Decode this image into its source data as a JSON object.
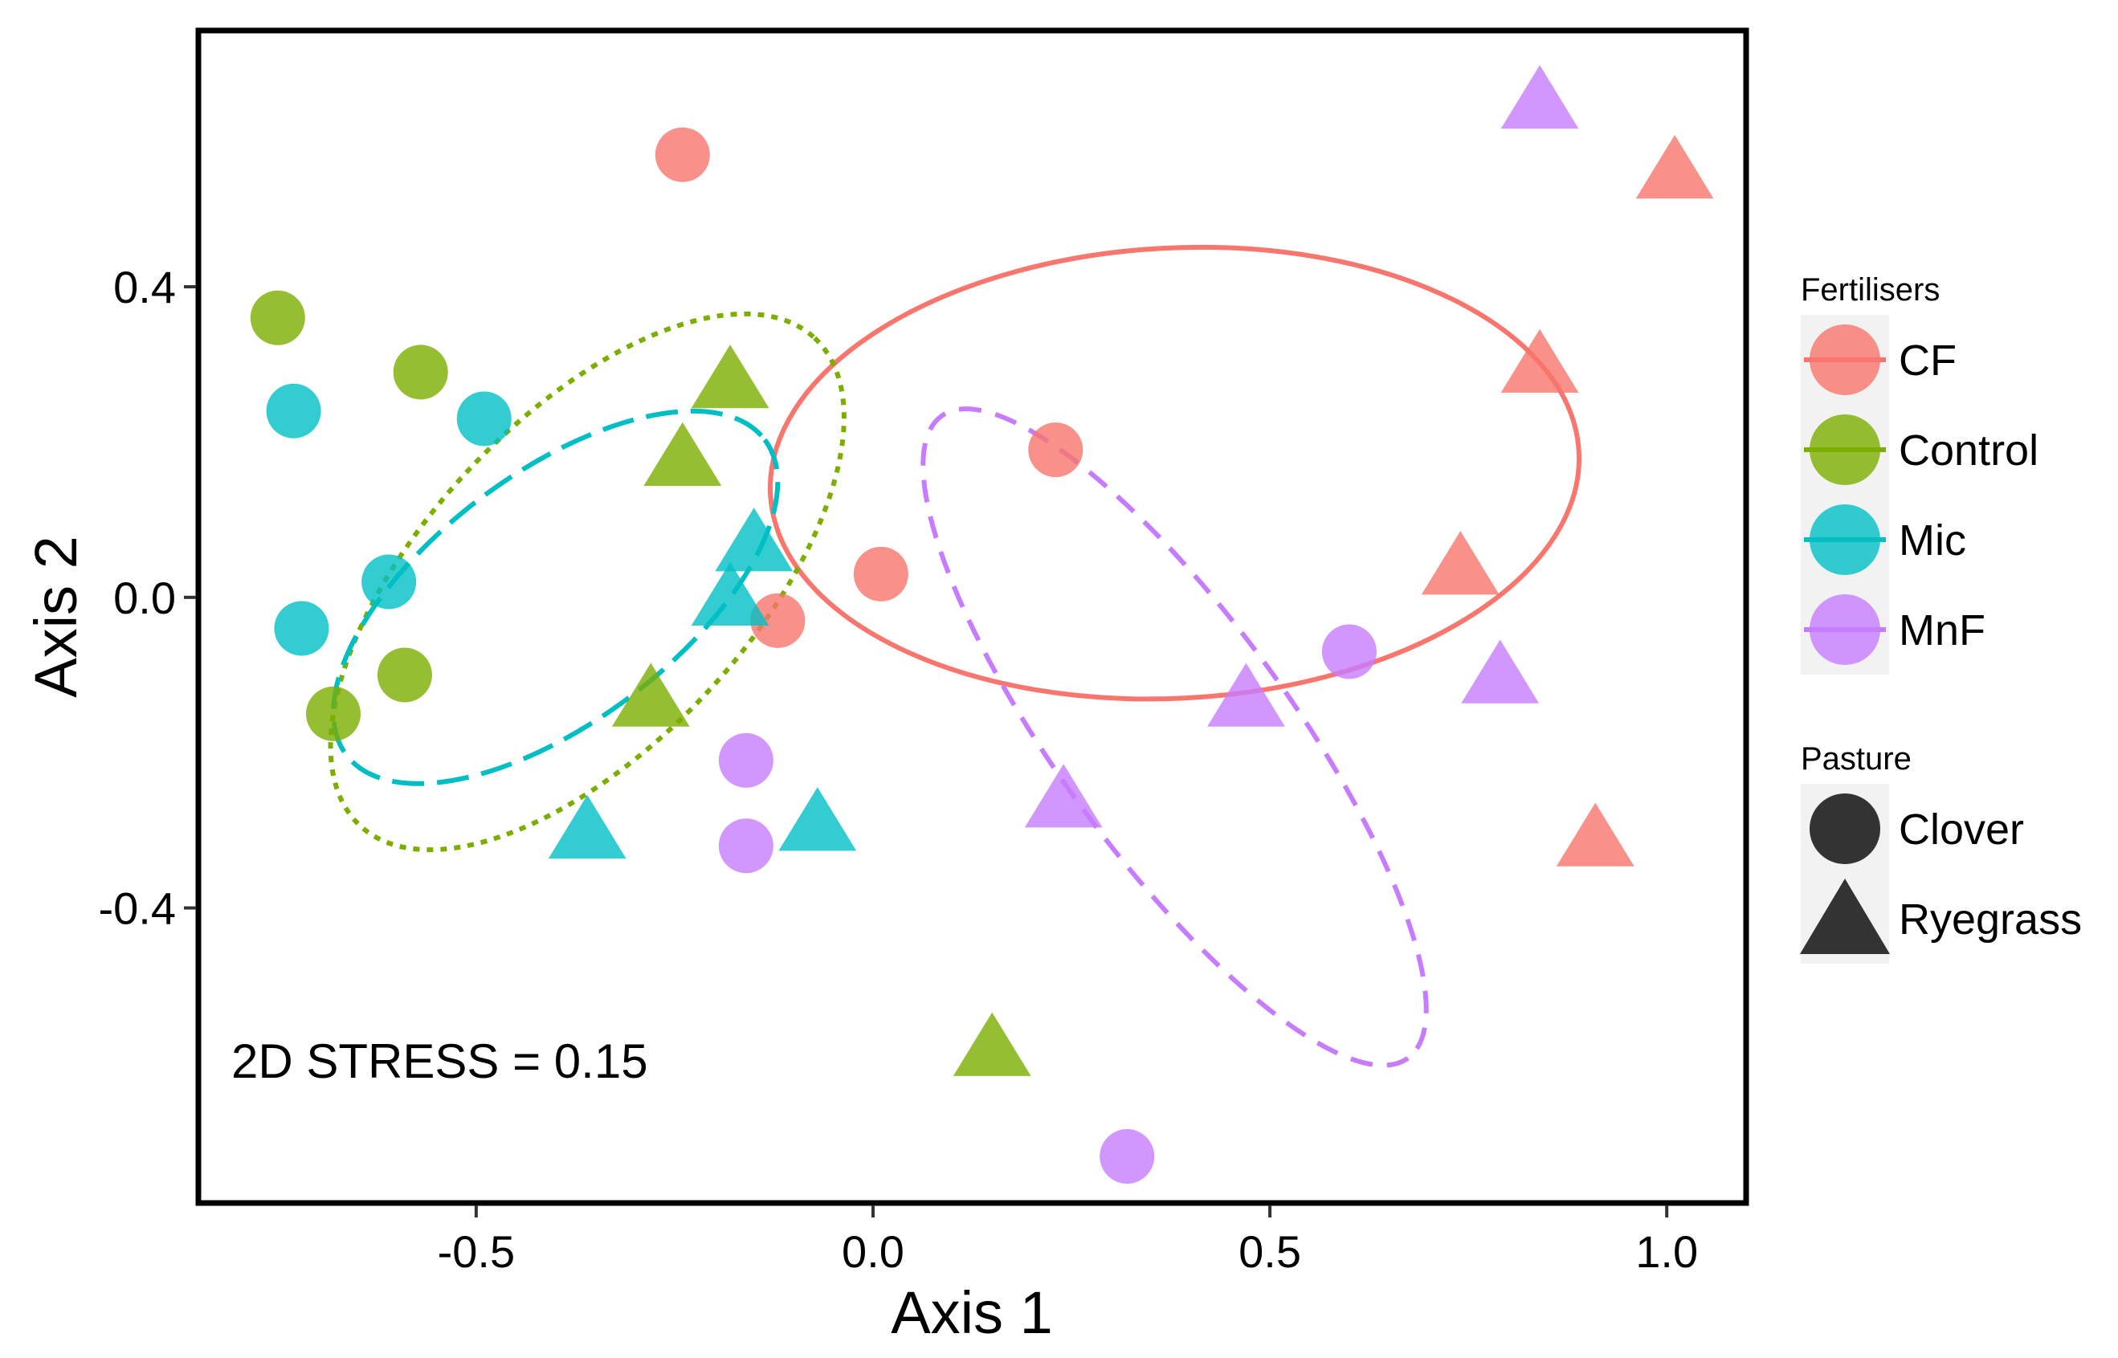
{
  "chart_data": {
    "type": "scatter",
    "title": "",
    "xlabel": "Axis 1",
    "ylabel": "Axis 2",
    "xlim": [
      -0.85,
      1.1
    ],
    "ylim": [
      -0.78,
      0.73
    ],
    "grid": false,
    "xticks": [
      -0.5,
      0.0,
      0.5,
      1.0
    ],
    "xtick_labels": [
      "-0.5",
      "0.0",
      "0.5",
      "1.0"
    ],
    "yticks": [
      -0.4,
      0.0,
      0.4
    ],
    "ytick_labels": [
      "-0.4",
      "0.0",
      "0.4"
    ],
    "annotation": "2D STRESS = 0.15",
    "colors": {
      "CF": "#f8766d",
      "Control": "#7cae00",
      "Mic": "#00bfc4",
      "MnF": "#c77cff"
    },
    "legend": {
      "placement": "right",
      "fertilisers_title": "Fertilisers",
      "fertilisers": [
        "CF",
        "Control",
        "Mic",
        "MnF"
      ],
      "pasture_title": "Pasture",
      "pasture": [
        {
          "label": "Clover",
          "shape": "circle"
        },
        {
          "label": "Ryegrass",
          "shape": "triangle"
        }
      ]
    },
    "series": [
      {
        "name": "CF",
        "points": [
          {
            "x": -0.24,
            "y": 0.57,
            "pasture": "Clover"
          },
          {
            "x": 0.23,
            "y": 0.19,
            "pasture": "Clover"
          },
          {
            "x": 0.01,
            "y": 0.03,
            "pasture": "Clover"
          },
          {
            "x": -0.12,
            "y": -0.03,
            "pasture": "Clover"
          },
          {
            "x": 1.01,
            "y": 0.55,
            "pasture": "Ryegrass"
          },
          {
            "x": 0.84,
            "y": 0.3,
            "pasture": "Ryegrass"
          },
          {
            "x": 0.74,
            "y": 0.04,
            "pasture": "Ryegrass"
          },
          {
            "x": 0.91,
            "y": -0.31,
            "pasture": "Ryegrass"
          }
        ]
      },
      {
        "name": "Control",
        "points": [
          {
            "x": -0.75,
            "y": 0.36,
            "pasture": "Clover"
          },
          {
            "x": -0.57,
            "y": 0.29,
            "pasture": "Clover"
          },
          {
            "x": -0.59,
            "y": -0.1,
            "pasture": "Clover"
          },
          {
            "x": -0.68,
            "y": -0.15,
            "pasture": "Clover"
          },
          {
            "x": -0.18,
            "y": 0.28,
            "pasture": "Ryegrass"
          },
          {
            "x": -0.24,
            "y": 0.18,
            "pasture": "Ryegrass"
          },
          {
            "x": -0.28,
            "y": -0.13,
            "pasture": "Ryegrass"
          },
          {
            "x": 0.15,
            "y": -0.58,
            "pasture": "Ryegrass"
          }
        ]
      },
      {
        "name": "Mic",
        "points": [
          {
            "x": -0.73,
            "y": 0.24,
            "pasture": "Clover"
          },
          {
            "x": -0.49,
            "y": 0.23,
            "pasture": "Clover"
          },
          {
            "x": -0.61,
            "y": 0.02,
            "pasture": "Clover"
          },
          {
            "x": -0.72,
            "y": -0.04,
            "pasture": "Clover"
          },
          {
            "x": -0.15,
            "y": 0.07,
            "pasture": "Ryegrass"
          },
          {
            "x": -0.18,
            "y": 0.0,
            "pasture": "Ryegrass"
          },
          {
            "x": -0.36,
            "y": -0.3,
            "pasture": "Ryegrass"
          },
          {
            "x": -0.07,
            "y": -0.29,
            "pasture": "Ryegrass"
          }
        ]
      },
      {
        "name": "MnF",
        "points": [
          {
            "x": 0.6,
            "y": -0.07,
            "pasture": "Clover"
          },
          {
            "x": -0.16,
            "y": -0.21,
            "pasture": "Clover"
          },
          {
            "x": -0.16,
            "y": -0.32,
            "pasture": "Clover"
          },
          {
            "x": 0.32,
            "y": -0.72,
            "pasture": "Clover"
          },
          {
            "x": 0.84,
            "y": 0.64,
            "pasture": "Ryegrass"
          },
          {
            "x": 0.79,
            "y": -0.1,
            "pasture": "Ryegrass"
          },
          {
            "x": 0.47,
            "y": -0.13,
            "pasture": "Ryegrass"
          },
          {
            "x": 0.24,
            "y": -0.26,
            "pasture": "Ryegrass"
          }
        ]
      }
    ],
    "ellipses": [
      {
        "group": "CF",
        "linetype": "solid",
        "cx": 0.38,
        "cy": 0.16,
        "rx": 0.51,
        "ry": 0.29,
        "angle_deg": -3
      },
      {
        "group": "Control",
        "linetype": "dotted",
        "cx": -0.36,
        "cy": 0.02,
        "rx": 0.42,
        "ry": 0.21,
        "angle_deg": -47
      },
      {
        "group": "Mic",
        "linetype": "longdash",
        "cx": -0.4,
        "cy": 0.0,
        "rx": 0.33,
        "ry": 0.16,
        "angle_deg": -37
      },
      {
        "group": "MnF",
        "linetype": "dashed",
        "cx": 0.38,
        "cy": -0.18,
        "rx": 0.5,
        "ry": 0.15,
        "angle_deg": 54
      }
    ]
  }
}
